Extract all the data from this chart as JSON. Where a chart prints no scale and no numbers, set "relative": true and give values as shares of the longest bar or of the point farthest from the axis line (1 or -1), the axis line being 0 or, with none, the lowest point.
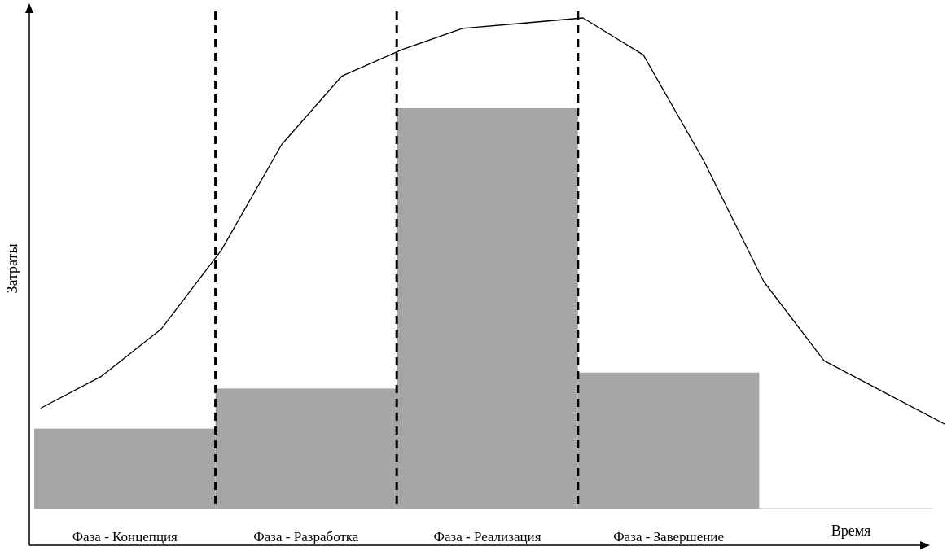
{
  "chart_data": [
    {
      "type": "bar",
      "relative": true,
      "xlabel": "Время",
      "ylabel": "Затраты",
      "color": "#a6a6a6",
      "categories": [
        "Фаза - Концепция",
        "Фаза - Разработка",
        "Фаза - Реализация",
        "Фаза - Завершение",
        null
      ],
      "values": [
        0.2,
        0.3,
        1.0,
        0.34,
        null
      ]
    },
    {
      "type": "line",
      "relative": true,
      "color": "#000000",
      "categories": [
        null,
        null,
        null,
        null,
        null,
        null,
        null,
        null,
        null,
        null,
        null,
        null,
        null,
        null,
        null,
        null
      ],
      "values": [
        0.26,
        0.32,
        0.41,
        0.56,
        0.76,
        0.89,
        0.94,
        0.98,
        0.99,
        1.0,
        0.93,
        0.73,
        0.5,
        0.35,
        0.29,
        0.23
      ]
    }
  ]
}
